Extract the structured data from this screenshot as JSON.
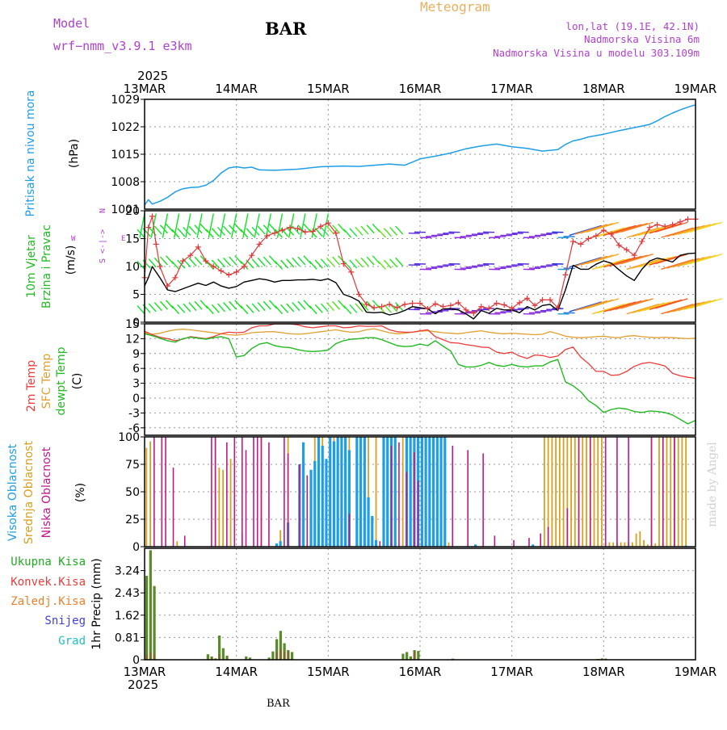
{
  "header": {
    "model_label": "Model",
    "model_value": "wrf−nmm_v3.9.1  e3km",
    "station": "BAR",
    "product": "Meteogram",
    "lonlat": "lon,lat (19.1E, 42.1N)",
    "elevation": "Nadmorska Visina 6m",
    "model_elevation": "Nadmorska Visina u modelu 303.109m",
    "footer_station": "BAR",
    "watermark": "made by Angel"
  },
  "colors": {
    "pressure": "#1e9ee6",
    "temp2m": "#ef3b3b",
    "sfc": "#e0a030",
    "dewpt": "#22bb22",
    "visoka": "#1e9ee6",
    "srednja": "#d8a020",
    "niska": "#c0188a",
    "ukupna": "#22aa22",
    "konvek": "#ef3b3b",
    "zaledj": "#f0802a",
    "snijeg": "#4040dd",
    "grad": "#20c0c0",
    "windspeed": "#000000",
    "gust": "#e0383a",
    "purple": "#b040d0"
  },
  "time_axis": {
    "year": "2025",
    "labels": [
      "13MAR",
      "14MAR",
      "15MAR",
      "16MAR",
      "17MAR",
      "18MAR",
      "19MAR"
    ],
    "hours": 144
  },
  "chart_data": [
    {
      "type": "line",
      "title": "Pritisak na nivou mora",
      "ylabel": "(hPa)",
      "ylim": [
        1001,
        1029
      ],
      "yticks": [
        1008,
        1015,
        1022,
        1029
      ],
      "x_hours": [
        0,
        1,
        2,
        4,
        6,
        8,
        10,
        12,
        14,
        16,
        18,
        20,
        22,
        24,
        26,
        28,
        30,
        34,
        40,
        46,
        52,
        56,
        60,
        64,
        68,
        72,
        76,
        80,
        84,
        88,
        92,
        96,
        100,
        104,
        108,
        110,
        112,
        114,
        116,
        120,
        124,
        128,
        132,
        134,
        136,
        138,
        140,
        142,
        144
      ],
      "series": [
        {
          "name": "SLP",
          "values": [
            1002,
            1003.4,
            1002.3,
            1003,
            1004,
            1005.4,
            1006.2,
            1006.5,
            1006.6,
            1007.1,
            1008.3,
            1010.2,
            1011.5,
            1011.8,
            1011.5,
            1011.7,
            1011,
            1010.9,
            1011.2,
            1011.8,
            1012,
            1011.9,
            1012.2,
            1012.5,
            1012.2,
            1013.8,
            1014.5,
            1015.3,
            1016.4,
            1017.1,
            1017.6,
            1016.9,
            1016.5,
            1015.8,
            1016.2,
            1017.5,
            1018.4,
            1018.8,
            1019.4,
            1020.1,
            1021,
            1021.8,
            1022.6,
            1023.5,
            1024.6,
            1025.5,
            1026.3,
            1027,
            1027.6
          ]
        }
      ]
    },
    {
      "type": "line",
      "title": "10m Vjetar Brzina i Pravac",
      "ylabel": "(m/s)",
      "ylim": [
        0,
        20
      ],
      "yticks": [
        0,
        5,
        10,
        15,
        20
      ],
      "compass": [
        "N",
        "S",
        "W",
        "E"
      ],
      "x_hours": [
        0,
        1,
        2,
        3,
        4,
        6,
        8,
        10,
        12,
        14,
        16,
        18,
        20,
        22,
        24,
        26,
        28,
        30,
        32,
        34,
        36,
        38,
        40,
        42,
        44,
        46,
        48,
        50,
        52,
        54,
        56,
        58,
        60,
        62,
        64,
        66,
        68,
        70,
        72,
        74,
        76,
        78,
        80,
        82,
        84,
        86,
        88,
        90,
        92,
        94,
        96,
        98,
        100,
        102,
        104,
        106,
        108,
        110,
        112,
        114,
        116,
        118,
        120,
        122,
        124,
        126,
        128,
        130,
        132,
        134,
        136,
        138,
        140,
        142,
        144
      ],
      "series": [
        {
          "name": "brzina",
          "values": [
            6.5,
            8,
            10,
            9,
            8,
            5.8,
            5.5,
            6,
            6.5,
            7,
            6.6,
            7.2,
            6.5,
            6.1,
            6.4,
            7.2,
            7.5,
            7.8,
            7.6,
            7.2,
            7.5,
            7.5,
            7.6,
            7.6,
            7.7,
            7.5,
            7.8,
            7.1,
            5,
            4.5,
            3.8,
            1.8,
            1.7,
            1.8,
            1.3,
            1.6,
            2.1,
            2.8,
            2.6,
            2.4,
            1.5,
            2.4,
            2.4,
            2.2,
            1.5,
            0.6,
            2.1,
            1.6,
            2.5,
            2.2,
            2.2,
            1.7,
            2.8,
            2.2,
            3,
            3.2,
            2.1,
            5.8,
            10.2,
            9.5,
            9.5,
            10.4,
            11,
            10.6,
            9.4,
            8.3,
            7.5,
            9.5,
            11,
            11.5,
            11.2,
            10.8,
            12,
            12.3,
            12.4
          ]
        },
        {
          "name": "udari",
          "values": [
            8,
            17,
            19,
            14,
            10,
            6.5,
            8,
            11,
            12,
            13.5,
            11,
            10,
            9.2,
            8.5,
            9,
            10,
            12,
            14,
            15.5,
            16,
            16.5,
            17,
            16.8,
            16.2,
            16.3,
            17.2,
            17.8,
            16,
            10.5,
            9,
            5,
            3.2,
            2.6,
            2.8,
            3.2,
            2.6,
            3.2,
            3.4,
            3.4,
            2.4,
            3.3,
            2.8,
            3,
            3.5,
            2.2,
            1.6,
            2.8,
            2.5,
            3.4,
            3.1,
            2.5,
            3.5,
            4.3,
            3,
            4,
            4,
            2.6,
            8.5,
            14.5,
            14,
            15,
            15.5,
            16.5,
            15.8,
            13.8,
            13,
            12,
            14.5,
            17,
            17.5,
            17.2,
            17.5,
            18,
            18.5,
            18.5
          ]
        }
      ]
    },
    {
      "type": "line",
      "title": "2m Temp / SFC Temp / dewpt Temp",
      "ylabel": "(C)",
      "ylim": [
        -7.5,
        15
      ],
      "yticks": [
        -6,
        -3,
        0,
        3,
        6,
        9,
        12,
        15
      ],
      "x_hours": [
        0,
        2,
        4,
        6,
        8,
        10,
        12,
        14,
        16,
        18,
        20,
        22,
        24,
        26,
        28,
        30,
        32,
        34,
        36,
        38,
        40,
        42,
        44,
        46,
        48,
        50,
        52,
        54,
        56,
        58,
        60,
        62,
        64,
        66,
        68,
        70,
        72,
        74,
        76,
        78,
        80,
        82,
        84,
        86,
        88,
        90,
        92,
        94,
        96,
        98,
        100,
        102,
        104,
        106,
        108,
        110,
        112,
        114,
        116,
        118,
        120,
        122,
        124,
        126,
        128,
        130,
        132,
        134,
        136,
        138,
        140,
        142,
        144
      ],
      "series": [
        {
          "name": "2m Temp",
          "values": [
            13.5,
            12.8,
            12.3,
            12,
            11.6,
            11.9,
            12.4,
            12.2,
            12,
            12.4,
            13,
            13.3,
            13.2,
            13.3,
            14.2,
            14.6,
            14.6,
            15,
            15,
            15,
            14.8,
            14.4,
            14.2,
            14.4,
            14.6,
            14.6,
            14.2,
            14.3,
            14.6,
            14.5,
            14.5,
            14.6,
            13.8,
            13.4,
            13.3,
            13.3,
            13.6,
            13.8,
            12.4,
            11.8,
            11.2,
            11.1,
            10.8,
            10.6,
            10.3,
            10.2,
            9.3,
            9,
            9.3,
            8.5,
            8,
            8.7,
            8.6,
            8.2,
            8.5,
            9.8,
            10.3,
            8.3,
            7,
            5.4,
            5.4,
            4.6,
            4.7,
            5.4,
            6.4,
            7,
            7.2,
            6.9,
            6.5,
            5,
            4.5,
            4.2,
            4
          ]
        },
        {
          "name": "SFC Temp",
          "values": [
            13.2,
            12.9,
            13.1,
            13.5,
            13.8,
            13.9,
            13.8,
            13.6,
            13.4,
            13.2,
            13,
            12.8,
            12.7,
            12.9,
            13.2,
            13.3,
            13.4,
            13.4,
            13.2,
            13,
            12.9,
            13,
            13.2,
            13.4,
            13.6,
            13.8,
            13.5,
            13.3,
            13.4,
            13.8,
            14,
            13.6,
            13.2,
            13,
            13.1,
            13.3,
            13.5,
            13.6,
            13.4,
            13.2,
            13.1,
            13,
            13.2,
            13.4,
            13.6,
            13.3,
            13.1,
            13,
            13.1,
            13,
            12.9,
            12.8,
            12.9,
            13.4,
            13,
            12.5,
            12.3,
            12.2,
            12.3,
            12.4,
            12.5,
            12.3,
            12.2,
            12.5,
            12.6,
            12.4,
            12.3,
            12.2,
            12.3,
            12.2,
            12.1,
            12,
            12.1
          ]
        },
        {
          "name": "dewpt Temp",
          "values": [
            13,
            12.6,
            12.1,
            11.6,
            11.3,
            12,
            12.3,
            12.1,
            11.9,
            12.2,
            12.4,
            12,
            8.3,
            8.6,
            10,
            10.9,
            11.2,
            10.6,
            10.3,
            10.2,
            9.8,
            9.5,
            9.4,
            9.5,
            9.7,
            11,
            11.6,
            11.9,
            12,
            12.2,
            12.2,
            11.8,
            11.2,
            10.6,
            10.4,
            10.5,
            10.9,
            10.6,
            11.6,
            10.5,
            9.5,
            6.8,
            6.3,
            6.3,
            6.6,
            7.2,
            6.6,
            6.4,
            6.8,
            6.4,
            6.3,
            6.5,
            6.5,
            7.3,
            7.8,
            3.3,
            2.5,
            1.3,
            -0.5,
            -1.5,
            -2.9,
            -2.3,
            -2,
            -2.2,
            -2.7,
            -2.9,
            -2.6,
            -2.7,
            -2.9,
            -3.4,
            -4.3,
            -5.2,
            -4.5
          ]
        }
      ]
    },
    {
      "type": "bar",
      "title": "Visoka / Srednja / Niska Oblacnost",
      "ylabel": "(%)",
      "ylim": [
        0,
        100
      ],
      "yticks": [
        0,
        25,
        50,
        75,
        100
      ],
      "series": [
        {
          "name": "Visoka Oblacnost",
          "hours": [
            34,
            35,
            37,
            40,
            41,
            43,
            44,
            45,
            46,
            47,
            48,
            49,
            50,
            51,
            52,
            53,
            55,
            56,
            57,
            58,
            59,
            60,
            62,
            63,
            64,
            65,
            68,
            69,
            70,
            71,
            72,
            73,
            74,
            75,
            76,
            77,
            78,
            86,
            101,
            141
          ],
          "values": [
            3,
            5,
            22,
            75,
            95,
            70,
            78,
            100,
            92,
            80,
            100,
            96,
            100,
            100,
            100,
            88,
            100,
            100,
            100,
            45,
            28,
            6,
            100,
            100,
            100,
            100,
            100,
            100,
            100,
            100,
            100,
            100,
            100,
            100,
            100,
            100,
            100,
            2,
            2,
            1
          ]
        },
        {
          "name": "Srednja Oblacnost",
          "hours": [
            0,
            1,
            8,
            18,
            19,
            20,
            22,
            25,
            30,
            35,
            37,
            44,
            46,
            49,
            51,
            53,
            55,
            57,
            58,
            60,
            63,
            65,
            67,
            69,
            71,
            73,
            75,
            77,
            79,
            104,
            105,
            106,
            107,
            108,
            109,
            110,
            111,
            112,
            113,
            114,
            115,
            116,
            117,
            118,
            119,
            120,
            121,
            122,
            123,
            124,
            125,
            126,
            127,
            128,
            129,
            130,
            131,
            132,
            133,
            134,
            135,
            136,
            137,
            138,
            139,
            140,
            141
          ],
          "values": [
            90,
            96,
            5,
            100,
            72,
            70,
            80,
            12,
            100,
            15,
            100,
            100,
            100,
            100,
            100,
            100,
            100,
            100,
            100,
            100,
            100,
            100,
            100,
            100,
            100,
            100,
            100,
            100,
            4,
            100,
            100,
            100,
            100,
            100,
            100,
            100,
            100,
            100,
            100,
            100,
            100,
            100,
            100,
            100,
            100,
            4,
            4,
            4,
            4,
            4,
            4,
            4,
            4,
            12,
            14,
            6,
            2,
            100,
            3,
            100,
            100,
            100,
            100,
            100,
            100,
            100,
            100
          ]
        },
        {
          "name": "Niska Oblacnost",
          "hours": [
            2,
            4,
            5,
            7,
            10,
            17,
            18,
            21,
            23,
            25,
            26,
            28,
            29,
            30,
            32,
            36,
            37,
            40,
            42,
            53,
            61,
            64,
            66,
            68,
            70,
            71,
            80,
            84,
            88,
            91,
            96,
            100,
            103,
            105,
            110,
            113,
            116,
            120,
            123,
            126,
            132,
            135,
            138
          ],
          "values": [
            100,
            100,
            100,
            72,
            10,
            100,
            100,
            95,
            100,
            100,
            88,
            100,
            100,
            100,
            95,
            100,
            85,
            75,
            65,
            30,
            5,
            92,
            95,
            68,
            86,
            60,
            92,
            88,
            85,
            10,
            6,
            8,
            12,
            18,
            35,
            100,
            100,
            100,
            100,
            100,
            100,
            100,
            100
          ]
        }
      ]
    },
    {
      "type": "bar",
      "title": "1hr Precip",
      "ylabel": "1hr Precip (mm)",
      "ylim": [
        0,
        4.05
      ],
      "yticks": [
        0,
        0.81,
        1.62,
        2.43,
        3.24
      ],
      "yticklabels": [
        "0",
        "0.81",
        "1.62",
        "2.43",
        "3.24"
      ],
      "legend": [
        "Ukupna Kisa",
        "Konvek.Kisa",
        "Zaledj.Kisa",
        "Snijeg",
        "Grad"
      ],
      "series": [
        {
          "name": "Ukupna Kisa",
          "hours": [
            0,
            1,
            2,
            16,
            17,
            18,
            19,
            20,
            21,
            26,
            27,
            32,
            33,
            34,
            35,
            36,
            37,
            38,
            67,
            68,
            69,
            70,
            71,
            80,
            118,
            119,
            120
          ],
          "values": [
            3.05,
            3.98,
            2.68,
            0.2,
            0.12,
            0.05,
            0.88,
            0.42,
            0.15,
            0.12,
            0.08,
            0.08,
            0.3,
            0.75,
            1.05,
            0.6,
            0.35,
            0.28,
            0.22,
            0.28,
            0.12,
            0.35,
            0.32,
            0.04,
            0.03,
            0.05,
            0.04
          ]
        },
        {
          "name": "Konvek.Kisa",
          "hours": [
            0,
            1,
            2,
            17,
            19,
            34,
            35,
            36,
            37,
            70
          ],
          "values": [
            0.2,
            0.3,
            0.2,
            0.08,
            0.2,
            0.25,
            0.4,
            0.3,
            0.3,
            0.3
          ]
        }
      ]
    }
  ]
}
